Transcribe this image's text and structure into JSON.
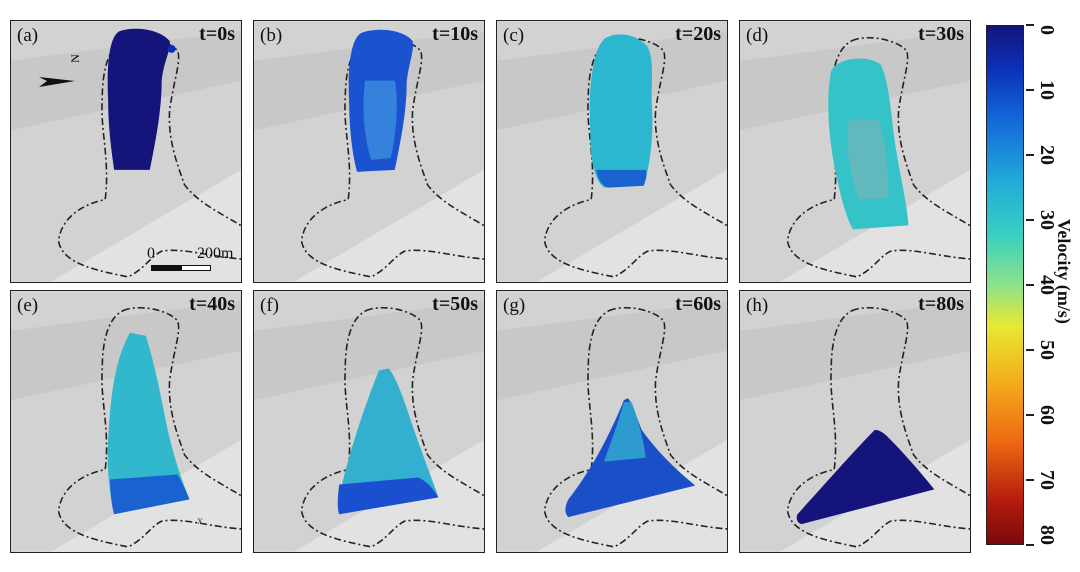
{
  "panels": [
    {
      "label": "(a)",
      "time": "t=0s"
    },
    {
      "label": "(b)",
      "time": "t=10s"
    },
    {
      "label": "(c)",
      "time": "t=20s"
    },
    {
      "label": "(d)",
      "time": "t=30s"
    },
    {
      "label": "(e)",
      "time": "t=40s"
    },
    {
      "label": "(f)",
      "time": "t=50s"
    },
    {
      "label": "(g)",
      "time": "t=60s"
    },
    {
      "label": "(h)",
      "time": "t=80s"
    }
  ],
  "scalebar": {
    "start": "0",
    "end": "200m"
  },
  "north_label": "N",
  "marker_label": "x",
  "colorbar": {
    "title": "Velocity (m/s)",
    "ticks": [
      "0",
      "10",
      "20",
      "30",
      "40",
      "50",
      "60",
      "70",
      "80"
    ],
    "range": [
      0,
      80
    ]
  },
  "colors": {
    "terrain": "#cfcfcf",
    "outline": "#222222",
    "slow": "#14147a",
    "mid": "#2bb7d0"
  }
}
